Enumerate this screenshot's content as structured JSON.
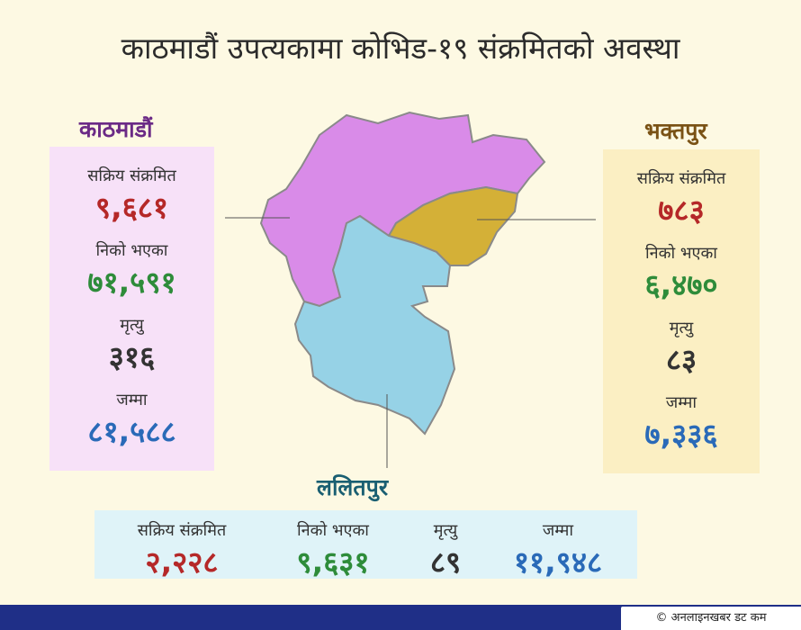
{
  "title": "काठमाडौं उपत्यकामा कोभिड-१९ संक्रमितको अवस्था",
  "colors": {
    "kathmandu": "#d98be8",
    "bhaktapur": "#d4b037",
    "lalitpur": "#96d2e6",
    "active": "#b52828",
    "recovered": "#2e8c3a",
    "deaths": "#333333",
    "total": "#2a6ab8"
  },
  "regions": {
    "kathmandu": {
      "name": "काठमाडौं",
      "active_label": "सक्रिय संक्रमित",
      "active": "९,६८१",
      "recovered_label": "निको भएका",
      "recovered": "७१,५९१",
      "deaths_label": "मृत्यु",
      "deaths": "३१६",
      "total_label": "जम्मा",
      "total": "८१,५८८"
    },
    "bhaktapur": {
      "name": "भक्तपुर",
      "active_label": "सक्रिय संक्रमित",
      "active": "७८३",
      "recovered_label": "निको भएका",
      "recovered": "६,४७०",
      "deaths_label": "मृत्यु",
      "deaths": "८३",
      "total_label": "जम्मा",
      "total": "७,३३६"
    },
    "lalitpur": {
      "name": "ललितपुर",
      "active_label": "सक्रिय संक्रमित",
      "active": "२,२२८",
      "recovered_label": "निको भएका",
      "recovered": "९,६३१",
      "deaths_label": "मृत्यु",
      "deaths": "८९",
      "total_label": "जम्मा",
      "total": "११,९४८"
    }
  },
  "footer": {
    "copyright": "© अनलाइनखबर डट कम"
  }
}
